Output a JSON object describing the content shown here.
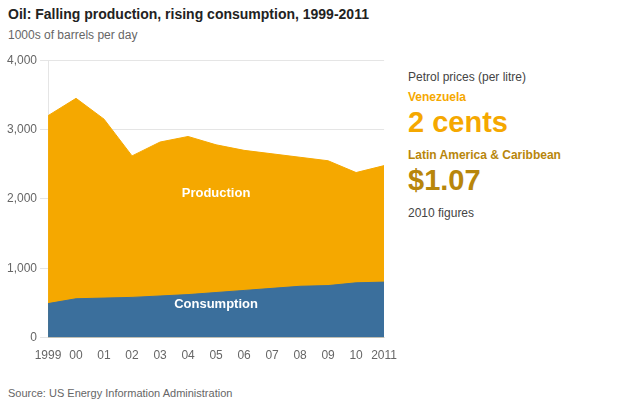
{
  "chart_data": {
    "type": "area",
    "title": "Oil: Falling production, rising consumption, 1999-2011",
    "subtitle": "1000s of barrels per day",
    "source": "Source: US Energy Information Administration",
    "x": [
      1999,
      2000,
      2001,
      2002,
      2003,
      2004,
      2005,
      2006,
      2007,
      2008,
      2009,
      2010,
      2011
    ],
    "xlim": [
      1999,
      2011
    ],
    "xticks": [
      1999,
      {
        "value": 2000,
        "label": "00"
      },
      {
        "value": 2001,
        "label": "01"
      },
      {
        "value": 2002,
        "label": "02"
      },
      {
        "value": 2003,
        "label": "03"
      },
      {
        "value": 2004,
        "label": "04"
      },
      {
        "value": 2005,
        "label": "05"
      },
      {
        "value": 2006,
        "label": "06"
      },
      {
        "value": 2007,
        "label": "07"
      },
      {
        "value": 2008,
        "label": "08"
      },
      {
        "value": 2009,
        "label": "09"
      },
      {
        "value": 2010,
        "label": "10"
      },
      2011
    ],
    "ylim": [
      0,
      4000
    ],
    "yticks": [
      0,
      {
        "value": 1000,
        "label": "1,000"
      },
      {
        "value": 2000,
        "label": "2,000"
      },
      {
        "value": 3000,
        "label": "3,000"
      },
      {
        "value": 4000,
        "label": "4,000"
      }
    ],
    "series": [
      {
        "name": "Production",
        "color": "#F5A800",
        "values": [
          3200,
          3450,
          3150,
          2620,
          2820,
          2900,
          2780,
          2700,
          2650,
          2600,
          2550,
          2380,
          2480
        ]
      },
      {
        "name": "Consumption",
        "color": "#3B6F9C",
        "values": [
          490,
          560,
          570,
          580,
          600,
          620,
          650,
          680,
          710,
          740,
          750,
          790,
          800
        ]
      }
    ],
    "grid": true,
    "legend": false,
    "annotations": [
      {
        "text": "Petrol prices (per litre)",
        "color": "#444444"
      },
      {
        "text": "Venezuela",
        "color": "#F5A800"
      },
      {
        "text": "2 cents",
        "color": "#F5A800"
      },
      {
        "text": "Latin America & Caribbean",
        "color": "#B8860B"
      },
      {
        "text": "$1.07",
        "color": "#B8860B"
      },
      {
        "text": "2010 figures",
        "color": "#444444"
      }
    ]
  }
}
